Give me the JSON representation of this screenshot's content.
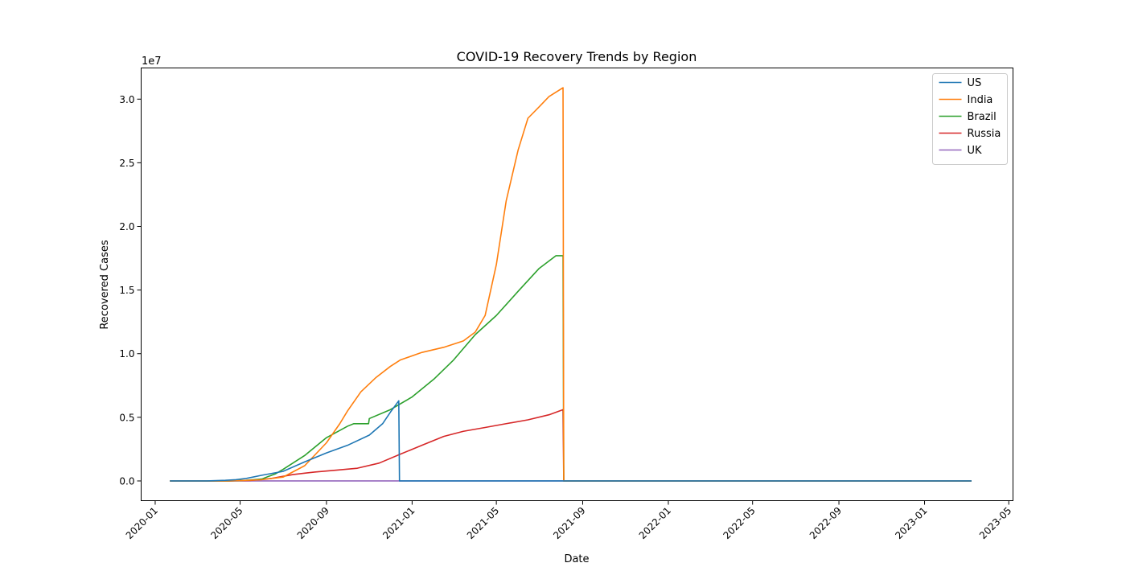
{
  "chart_data": {
    "type": "line",
    "title": "COVID-19 Recovery Trends by Region",
    "xlabel": "Date",
    "ylabel": "Recovered Cases",
    "y_offset_label": "1e7",
    "y_unit_scale": 10000000,
    "xlim": [
      "2019-12-12",
      "2023-05-07"
    ],
    "ylim": [
      -1550000,
      32450000
    ],
    "x_ticks": [
      "2020-01",
      "2020-05",
      "2020-09",
      "2021-01",
      "2021-05",
      "2021-09",
      "2022-01",
      "2022-05",
      "2022-09",
      "2023-01",
      "2023-05"
    ],
    "y_ticks": [
      0,
      5000000,
      10000000,
      15000000,
      20000000,
      25000000,
      30000000
    ],
    "y_tick_labels": [
      "0.0",
      "0.5",
      "1.0",
      "1.5",
      "2.0",
      "2.5",
      "3.0"
    ],
    "grid": false,
    "legend_position": "upper-right",
    "series": [
      {
        "name": "US",
        "color": "#1f77b4",
        "points": [
          [
            "2020-01-22",
            0
          ],
          [
            "2020-03-15",
            0
          ],
          [
            "2020-04-10",
            50000
          ],
          [
            "2020-04-25",
            100000
          ],
          [
            "2020-05-10",
            200000
          ],
          [
            "2020-06-01",
            450000
          ],
          [
            "2020-07-01",
            750000
          ],
          [
            "2020-08-01",
            1500000
          ],
          [
            "2020-09-01",
            2200000
          ],
          [
            "2020-10-01",
            2800000
          ],
          [
            "2020-11-01",
            3600000
          ],
          [
            "2020-11-20",
            4500000
          ],
          [
            "2020-12-01",
            5400000
          ],
          [
            "2020-12-13",
            6300000
          ],
          [
            "2020-12-14",
            0
          ],
          [
            "2021-08-04",
            0
          ],
          [
            "2023-03-09",
            0
          ]
        ]
      },
      {
        "name": "India",
        "color": "#ff7f0e",
        "points": [
          [
            "2020-01-22",
            0
          ],
          [
            "2020-04-01",
            0
          ],
          [
            "2020-05-01",
            30000
          ],
          [
            "2020-06-01",
            100000
          ],
          [
            "2020-07-01",
            300000
          ],
          [
            "2020-08-01",
            1200000
          ],
          [
            "2020-09-01",
            3000000
          ],
          [
            "2020-09-20",
            4500000
          ],
          [
            "2020-10-01",
            5500000
          ],
          [
            "2020-10-20",
            7000000
          ],
          [
            "2020-11-10",
            8100000
          ],
          [
            "2020-12-01",
            9000000
          ],
          [
            "2020-12-15",
            9500000
          ],
          [
            "2021-01-15",
            10100000
          ],
          [
            "2021-02-15",
            10500000
          ],
          [
            "2021-03-15",
            11000000
          ],
          [
            "2021-04-01",
            11700000
          ],
          [
            "2021-04-15",
            13000000
          ],
          [
            "2021-05-01",
            17000000
          ],
          [
            "2021-05-15",
            22000000
          ],
          [
            "2021-06-01",
            26000000
          ],
          [
            "2021-06-15",
            28500000
          ],
          [
            "2021-07-01",
            29400000
          ],
          [
            "2021-07-15",
            30200000
          ],
          [
            "2021-08-04",
            30900000
          ],
          [
            "2021-08-05",
            0
          ],
          [
            "2023-03-09",
            0
          ]
        ]
      },
      {
        "name": "Brazil",
        "color": "#2ca02c",
        "points": [
          [
            "2020-01-22",
            0
          ],
          [
            "2020-04-15",
            0
          ],
          [
            "2020-05-10",
            50000
          ],
          [
            "2020-06-01",
            150000
          ],
          [
            "2020-06-10",
            350000
          ],
          [
            "2020-06-20",
            550000
          ],
          [
            "2020-07-01",
            900000
          ],
          [
            "2020-08-01",
            2000000
          ],
          [
            "2020-09-01",
            3400000
          ],
          [
            "2020-10-01",
            4300000
          ],
          [
            "2020-10-10",
            4500000
          ],
          [
            "2020-10-31",
            4500000
          ],
          [
            "2020-11-01",
            4900000
          ],
          [
            "2020-12-01",
            5600000
          ],
          [
            "2021-01-01",
            6600000
          ],
          [
            "2021-02-01",
            8000000
          ],
          [
            "2021-03-01",
            9500000
          ],
          [
            "2021-04-01",
            11500000
          ],
          [
            "2021-05-01",
            13000000
          ],
          [
            "2021-06-01",
            14900000
          ],
          [
            "2021-07-01",
            16700000
          ],
          [
            "2021-07-25",
            17700000
          ],
          [
            "2021-08-04",
            17700000
          ],
          [
            "2021-08-05",
            0
          ],
          [
            "2023-03-09",
            0
          ]
        ]
      },
      {
        "name": "Russia",
        "color": "#d62728",
        "points": [
          [
            "2020-01-22",
            0
          ],
          [
            "2020-04-15",
            0
          ],
          [
            "2020-05-15",
            30000
          ],
          [
            "2020-06-15",
            200000
          ],
          [
            "2020-07-15",
            500000
          ],
          [
            "2020-08-15",
            700000
          ],
          [
            "2020-09-15",
            850000
          ],
          [
            "2020-10-15",
            1000000
          ],
          [
            "2020-11-15",
            1400000
          ],
          [
            "2020-12-15",
            2100000
          ],
          [
            "2021-01-15",
            2800000
          ],
          [
            "2021-02-15",
            3500000
          ],
          [
            "2021-03-15",
            3900000
          ],
          [
            "2021-04-15",
            4200000
          ],
          [
            "2021-05-15",
            4500000
          ],
          [
            "2021-06-15",
            4800000
          ],
          [
            "2021-07-15",
            5200000
          ],
          [
            "2021-08-04",
            5600000
          ],
          [
            "2021-08-05",
            0
          ],
          [
            "2023-03-09",
            0
          ]
        ]
      },
      {
        "name": "UK",
        "color": "#9467bd",
        "points": [
          [
            "2020-01-22",
            0
          ],
          [
            "2023-03-09",
            0
          ]
        ]
      }
    ]
  }
}
